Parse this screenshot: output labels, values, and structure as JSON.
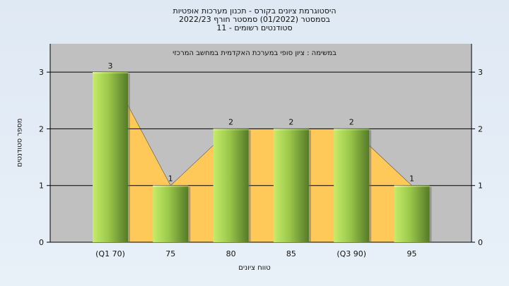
{
  "chart_data": {
    "type": "bar",
    "title_lines": [
      "היסטוגרמת ציונים בקורס - תכנון מערכות אופטיות",
      "בסמסטר (01/2022) סמסטר חורף 2022/23",
      "סטודנטים רשומים - 11"
    ],
    "annotation": "במשימה : ציון סופי במערכת האקדמית במחשב המרכזי",
    "xlabel": "טווח ציונים",
    "ylabel": "מספר סטודנטים",
    "categories": [
      "(Q1 70)",
      "75",
      "80",
      "85",
      "(Q3 90)",
      "95"
    ],
    "values": [
      3,
      1,
      2,
      2,
      2,
      1
    ],
    "data_labels": [
      "3",
      "1",
      "2",
      "2",
      "2",
      "1"
    ],
    "yticks": [
      "0",
      "1",
      "2",
      "3"
    ],
    "ylim": [
      0,
      3.5
    ],
    "grid": true,
    "colors": {
      "plot_bg": "#c0c0c0",
      "area_fill": "#ffc95a",
      "bar_light": "#c6ec6a",
      "bar_mid": "#9bc84a",
      "bar_dark": "#557a28"
    }
  }
}
